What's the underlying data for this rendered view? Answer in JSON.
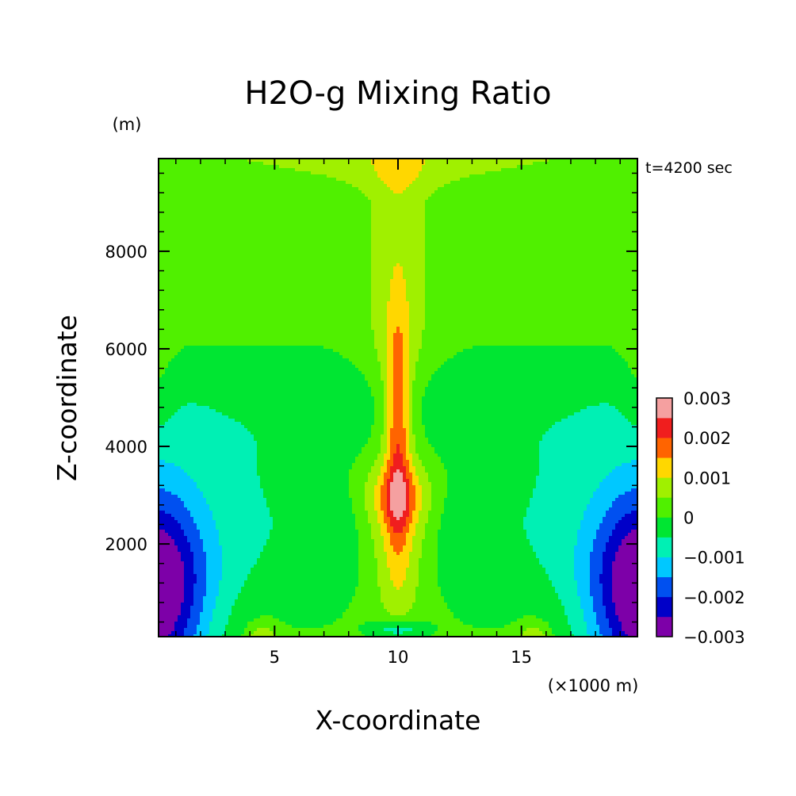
{
  "chart_data": {
    "type": "heatmap",
    "subtype": "filled-contour",
    "title": "H2O-g Mixing Ratio",
    "xlabel": "X-coordinate",
    "ylabel": "Z-coordinate",
    "x_unit": "(×1000 m)",
    "y_unit": "(m)",
    "time_label": "t=4200 sec",
    "xlim": [
      0.3,
      19.7
    ],
    "ylim": [
      100,
      9900
    ],
    "x_ticks": [
      5,
      10,
      15
    ],
    "y_ticks": [
      2000,
      4000,
      6000,
      8000
    ],
    "colorbar": {
      "labels": [
        "0.003",
        "0.002",
        "0.001",
        "0",
        "−0.001",
        "−0.002",
        "−0.003"
      ],
      "levels": [
        -0.003,
        -0.0025,
        -0.002,
        -0.0015,
        -0.001,
        -0.0005,
        0,
        0.0005,
        0.001,
        0.0015,
        0.002,
        0.0025,
        0.003
      ],
      "colors": [
        "#7d00a8",
        "#0000c8",
        "#0050f0",
        "#00c8ff",
        "#00f0b4",
        "#00e632",
        "#50f000",
        "#a0f000",
        "#ffd700",
        "#ff6400",
        "#f01e1e",
        "#f5a0a0"
      ]
    },
    "features": {
      "background_value": 0.0,
      "central_plume_x": 10,
      "central_plume_max": 0.0022,
      "central_plume_max_altitude": 2900,
      "lower_lateral_minimum": -0.003
    }
  }
}
